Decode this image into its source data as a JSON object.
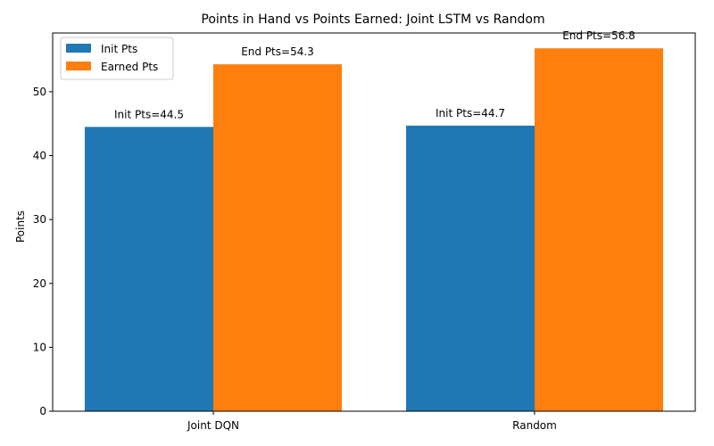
{
  "chart_data": {
    "type": "bar",
    "title": "Points in Hand vs Points Earned: Joint LSTM vs Random",
    "xlabel": "",
    "ylabel": "Points",
    "categories": [
      "Joint DQN",
      "Random"
    ],
    "series": [
      {
        "name": "Init Pts",
        "color": "#1f77b4",
        "values": [
          44.5,
          44.7
        ],
        "labels": [
          "Init Pts=44.5",
          "Init Pts=44.7"
        ]
      },
      {
        "name": "Earned Pts",
        "color": "#ff7f0e",
        "values": [
          54.3,
          56.8
        ],
        "labels": [
          "End Pts=54.3",
          "End Pts=56.8"
        ]
      }
    ],
    "ylim": [
      0,
      59.2
    ],
    "yticks": [
      0,
      10,
      20,
      30,
      40,
      50
    ],
    "grid": false,
    "legend": "top-left"
  }
}
